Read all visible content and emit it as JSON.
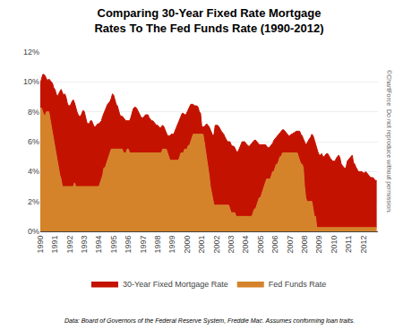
{
  "chart_data": {
    "type": "area",
    "title": "Comparing 30-Year Fixed Rate Mortgage\nRates To The Fed Funds Rate (1990-2012)",
    "annotations": [
      "Data: Board of Governors of the Federal Reserve System, Freddie Mac. Assumes conforming loan traits.",
      "©ChartForce  Do not reproduce without permission."
    ],
    "x": [
      1990,
      1990.083,
      1990.167,
      1990.25,
      1990.333,
      1990.417,
      1990.5,
      1990.583,
      1990.667,
      1990.75,
      1990.833,
      1990.917,
      1991,
      1991.083,
      1991.167,
      1991.25,
      1991.333,
      1991.417,
      1991.5,
      1991.583,
      1991.667,
      1991.75,
      1991.833,
      1991.917,
      1992,
      1992.083,
      1992.167,
      1992.25,
      1992.333,
      1992.417,
      1992.5,
      1992.583,
      1992.667,
      1992.75,
      1992.833,
      1992.917,
      1993,
      1993.083,
      1993.167,
      1993.25,
      1993.333,
      1993.417,
      1993.5,
      1993.583,
      1993.667,
      1993.75,
      1993.833,
      1993.917,
      1994,
      1994.083,
      1994.167,
      1994.25,
      1994.333,
      1994.417,
      1994.5,
      1994.583,
      1994.667,
      1994.75,
      1994.833,
      1994.917,
      1995,
      1995.083,
      1995.167,
      1995.25,
      1995.333,
      1995.417,
      1995.5,
      1995.583,
      1995.667,
      1995.75,
      1995.833,
      1995.917,
      1996,
      1996.083,
      1996.167,
      1996.25,
      1996.333,
      1996.417,
      1996.5,
      1996.583,
      1996.667,
      1996.75,
      1996.833,
      1996.917,
      1997,
      1997.083,
      1997.167,
      1997.25,
      1997.333,
      1997.417,
      1997.5,
      1997.583,
      1997.667,
      1997.75,
      1997.833,
      1997.917,
      1998,
      1998.083,
      1998.167,
      1998.25,
      1998.333,
      1998.417,
      1998.5,
      1998.583,
      1998.667,
      1998.75,
      1998.833,
      1998.917,
      1999,
      1999.083,
      1999.167,
      1999.25,
      1999.333,
      1999.417,
      1999.5,
      1999.583,
      1999.667,
      1999.75,
      1999.833,
      1999.917,
      2000,
      2000.083,
      2000.167,
      2000.25,
      2000.333,
      2000.417,
      2000.5,
      2000.583,
      2000.667,
      2000.75,
      2000.833,
      2000.917,
      2001,
      2001.083,
      2001.167,
      2001.25,
      2001.333,
      2001.417,
      2001.5,
      2001.583,
      2001.667,
      2001.75,
      2001.833,
      2001.917,
      2002,
      2002.083,
      2002.167,
      2002.25,
      2002.333,
      2002.417,
      2002.5,
      2002.583,
      2002.667,
      2002.75,
      2002.833,
      2002.917,
      2003,
      2003.083,
      2003.167,
      2003.25,
      2003.333,
      2003.417,
      2003.5,
      2003.583,
      2003.667,
      2003.75,
      2003.833,
      2003.917,
      2004,
      2004.083,
      2004.167,
      2004.25,
      2004.333,
      2004.417,
      2004.5,
      2004.583,
      2004.667,
      2004.75,
      2004.833,
      2004.917,
      2005,
      2005.083,
      2005.167,
      2005.25,
      2005.333,
      2005.417,
      2005.5,
      2005.583,
      2005.667,
      2005.75,
      2005.833,
      2005.917,
      2006,
      2006.083,
      2006.167,
      2006.25,
      2006.333,
      2006.417,
      2006.5,
      2006.583,
      2006.667,
      2006.75,
      2006.833,
      2006.917,
      2007,
      2007.083,
      2007.167,
      2007.25,
      2007.333,
      2007.417,
      2007.5,
      2007.583,
      2007.667,
      2007.75,
      2007.833,
      2007.917,
      2008,
      2008.083,
      2008.167,
      2008.25,
      2008.333,
      2008.417,
      2008.5,
      2008.583,
      2008.667,
      2008.75,
      2008.833,
      2008.917,
      2009,
      2009.083,
      2009.167,
      2009.25,
      2009.333,
      2009.417,
      2009.5,
      2009.583,
      2009.667,
      2009.75,
      2009.833,
      2009.917,
      2010,
      2010.083,
      2010.167,
      2010.25,
      2010.333,
      2010.417,
      2010.5,
      2010.583,
      2010.667,
      2010.75,
      2010.833,
      2010.917,
      2011,
      2011.083,
      2011.167,
      2011.25,
      2011.333,
      2011.417,
      2011.5,
      2011.583,
      2011.667,
      2011.75,
      2011.833,
      2011.917,
      2012,
      2012.083,
      2012.167,
      2012.25,
      2012.333,
      2012.417,
      2012.5,
      2012.583,
      2012.667,
      2012.75,
      2012.833,
      2012.917
    ],
    "series": [
      {
        "name": "Fed Funds Rate",
        "color": "#D4832A",
        "values": [
          8.25,
          8.25,
          8.0,
          7.75,
          7.75,
          8.0,
          8.0,
          8.0,
          7.5,
          7.0,
          6.5,
          6.0,
          5.5,
          5.0,
          4.5,
          4.0,
          3.75,
          3.5,
          3.0,
          3.0,
          3.0,
          3.0,
          3.0,
          3.0,
          3.0,
          3.0,
          3.0,
          3.0,
          3.25,
          3.0,
          3.0,
          3.0,
          3.0,
          3.0,
          3.0,
          3.0,
          3.0,
          3.0,
          3.0,
          3.0,
          3.0,
          3.0,
          3.0,
          3.0,
          3.0,
          3.0,
          3.0,
          3.0,
          3.0,
          3.25,
          3.5,
          3.75,
          4.25,
          4.25,
          4.5,
          4.75,
          5.0,
          5.25,
          5.5,
          5.5,
          5.5,
          5.5,
          5.5,
          5.5,
          5.5,
          5.5,
          5.5,
          5.5,
          5.25,
          5.25,
          5.25,
          5.5,
          5.5,
          5.25,
          5.25,
          5.25,
          5.25,
          5.25,
          5.25,
          5.25,
          5.25,
          5.25,
          5.25,
          5.25,
          5.25,
          5.25,
          5.25,
          5.25,
          5.25,
          5.25,
          5.25,
          5.25,
          5.25,
          5.25,
          5.25,
          5.25,
          5.25,
          5.25,
          5.25,
          5.25,
          5.5,
          5.5,
          5.5,
          5.5,
          5.25,
          5.0,
          4.75,
          4.75,
          4.75,
          4.75,
          4.75,
          4.75,
          4.75,
          4.75,
          5.0,
          5.25,
          5.25,
          5.25,
          5.5,
          5.5,
          5.5,
          5.75,
          5.75,
          6.0,
          6.25,
          6.5,
          6.5,
          6.5,
          6.5,
          6.5,
          6.5,
          6.5,
          6.5,
          6.5,
          6.0,
          5.5,
          5.0,
          4.5,
          3.75,
          3.0,
          2.5,
          2.0,
          1.75,
          1.75,
          1.75,
          1.75,
          1.75,
          1.75,
          1.75,
          1.75,
          1.75,
          1.75,
          1.75,
          1.75,
          1.75,
          1.5,
          1.25,
          1.25,
          1.25,
          1.25,
          1.0,
          1.0,
          1.0,
          1.0,
          1.0,
          1.0,
          1.0,
          1.0,
          1.0,
          1.0,
          1.0,
          1.0,
          1.0,
          1.0,
          1.25,
          1.5,
          1.5,
          1.75,
          2.0,
          2.25,
          2.25,
          2.5,
          2.75,
          3.0,
          3.25,
          3.5,
          3.5,
          3.5,
          3.5,
          3.75,
          4.0,
          4.0,
          4.25,
          4.5,
          4.5,
          4.75,
          5.0,
          5.0,
          5.25,
          5.25,
          5.25,
          5.25,
          5.25,
          5.25,
          5.25,
          5.25,
          5.25,
          5.25,
          5.25,
          5.25,
          5.25,
          5.0,
          4.75,
          4.5,
          4.5,
          4.25,
          3.0,
          2.25,
          2.0,
          2.0,
          2.0,
          2.0,
          2.0,
          1.5,
          1.0,
          1.0,
          0.25,
          0.25,
          0.25,
          0.25,
          0.25,
          0.25,
          0.25,
          0.25,
          0.25,
          0.25,
          0.25,
          0.25,
          0.25,
          0.25,
          0.25,
          0.25,
          0.25,
          0.25,
          0.25,
          0.25,
          0.25,
          0.25,
          0.25,
          0.25,
          0.25,
          0.25,
          0.25,
          0.25,
          0.25,
          0.25,
          0.25,
          0.25,
          0.25,
          0.25,
          0.25,
          0.25,
          0.25,
          0.25,
          0.25,
          0.25,
          0.25,
          0.25,
          0.25,
          0.25,
          0.25,
          0.25,
          0.25,
          0.25,
          0.25,
          0.25
        ]
      },
      {
        "name": "30-Year Fixed Mortgage Rate",
        "color": "#C41200",
        "values": [
          9.9,
          10.2,
          10.5,
          10.5,
          10.4,
          10.2,
          10.1,
          10.2,
          10.1,
          10.0,
          9.9,
          9.6,
          9.5,
          9.2,
          9.0,
          9.2,
          9.4,
          9.5,
          9.3,
          9.1,
          9.2,
          9.0,
          8.6,
          8.4,
          8.4,
          8.5,
          8.7,
          8.8,
          8.6,
          8.2,
          8.0,
          7.8,
          7.7,
          7.7,
          7.9,
          8.1,
          8.0,
          7.7,
          7.3,
          7.2,
          7.2,
          7.4,
          7.4,
          7.2,
          7.0,
          7.0,
          7.1,
          7.2,
          7.2,
          7.3,
          7.4,
          7.7,
          7.9,
          8.2,
          8.4,
          8.5,
          8.6,
          8.7,
          8.9,
          9.2,
          9.1,
          8.8,
          8.5,
          8.4,
          8.1,
          7.8,
          7.7,
          7.7,
          7.6,
          7.5,
          7.4,
          7.4,
          7.4,
          7.4,
          7.6,
          7.9,
          8.2,
          8.3,
          8.3,
          8.2,
          8.0,
          7.8,
          7.7,
          7.6,
          7.6,
          7.7,
          7.8,
          7.8,
          7.8,
          7.6,
          7.5,
          7.4,
          7.4,
          7.3,
          7.2,
          7.1,
          7.1,
          7.0,
          6.9,
          7.0,
          7.1,
          7.0,
          6.8,
          6.5,
          6.4,
          6.4,
          6.4,
          6.5,
          6.5,
          6.5,
          6.7,
          6.9,
          7.1,
          7.4,
          7.6,
          7.8,
          7.9,
          7.9,
          7.8,
          7.8,
          8.0,
          8.2,
          8.3,
          8.5,
          8.5,
          8.5,
          8.4,
          8.4,
          8.4,
          8.3,
          8.0,
          7.9,
          7.0,
          7.0,
          7.0,
          7.1,
          7.2,
          7.1,
          7.0,
          6.8,
          6.6,
          6.4,
          6.5,
          7.1,
          7.1,
          7.1,
          7.0,
          6.8,
          6.7,
          6.6,
          6.5,
          6.3,
          6.1,
          6.0,
          6.0,
          6.0,
          5.8,
          5.7,
          5.7,
          5.6,
          5.4,
          5.3,
          5.4,
          5.6,
          5.8,
          6.0,
          6.0,
          6.0,
          5.9,
          5.8,
          5.7,
          5.7,
          5.8,
          5.9,
          6.0,
          6.1,
          6.1,
          6.0,
          5.9,
          5.8,
          5.8,
          5.8,
          5.8,
          5.8,
          5.8,
          5.7,
          5.6,
          5.6,
          5.7,
          5.8,
          5.9,
          6.1,
          6.2,
          6.3,
          6.4,
          6.5,
          6.6,
          6.7,
          6.8,
          6.8,
          6.7,
          6.6,
          6.5,
          6.4,
          6.4,
          6.5,
          6.5,
          6.6,
          6.6,
          6.7,
          6.7,
          6.7,
          6.7,
          6.5,
          6.4,
          6.2,
          6.0,
          5.8,
          5.9,
          6.1,
          6.2,
          6.3,
          6.5,
          6.4,
          6.1,
          5.9,
          5.5,
          5.3,
          5.1,
          5.1,
          5.2,
          5.0,
          5.0,
          5.1,
          5.2,
          5.2,
          5.0,
          4.9,
          4.8,
          4.7,
          4.7,
          4.7,
          4.9,
          5.0,
          5.1,
          4.9,
          4.5,
          4.4,
          4.3,
          4.2,
          4.3,
          4.7,
          4.8,
          4.9,
          5.0,
          5.1,
          4.6,
          4.5,
          4.3,
          4.1,
          4.0,
          4.0,
          4.0,
          4.0,
          3.9,
          3.9,
          4.0,
          3.9,
          3.8,
          3.7,
          3.6,
          3.6,
          3.6,
          3.5,
          3.4,
          3.4
        ]
      }
    ],
    "xlim": [
      1990,
      2013
    ],
    "xticks": [
      1990,
      1991,
      1992,
      1993,
      1994,
      1995,
      1996,
      1997,
      1998,
      1999,
      2000,
      2001,
      2002,
      2003,
      2004,
      2005,
      2006,
      2007,
      2008,
      2009,
      2010,
      2011,
      2012
    ],
    "ylim": [
      0,
      12
    ],
    "yticks": [
      {
        "value": 0,
        "label": "0%"
      },
      {
        "value": 2,
        "label": "2%"
      },
      {
        "value": 4,
        "label": "4%"
      },
      {
        "value": 6,
        "label": "6%"
      },
      {
        "value": 8,
        "label": "8%"
      },
      {
        "value": 10,
        "label": "10%"
      },
      {
        "value": 12,
        "label": "12%"
      }
    ],
    "grid": true,
    "legend": "bottom"
  }
}
